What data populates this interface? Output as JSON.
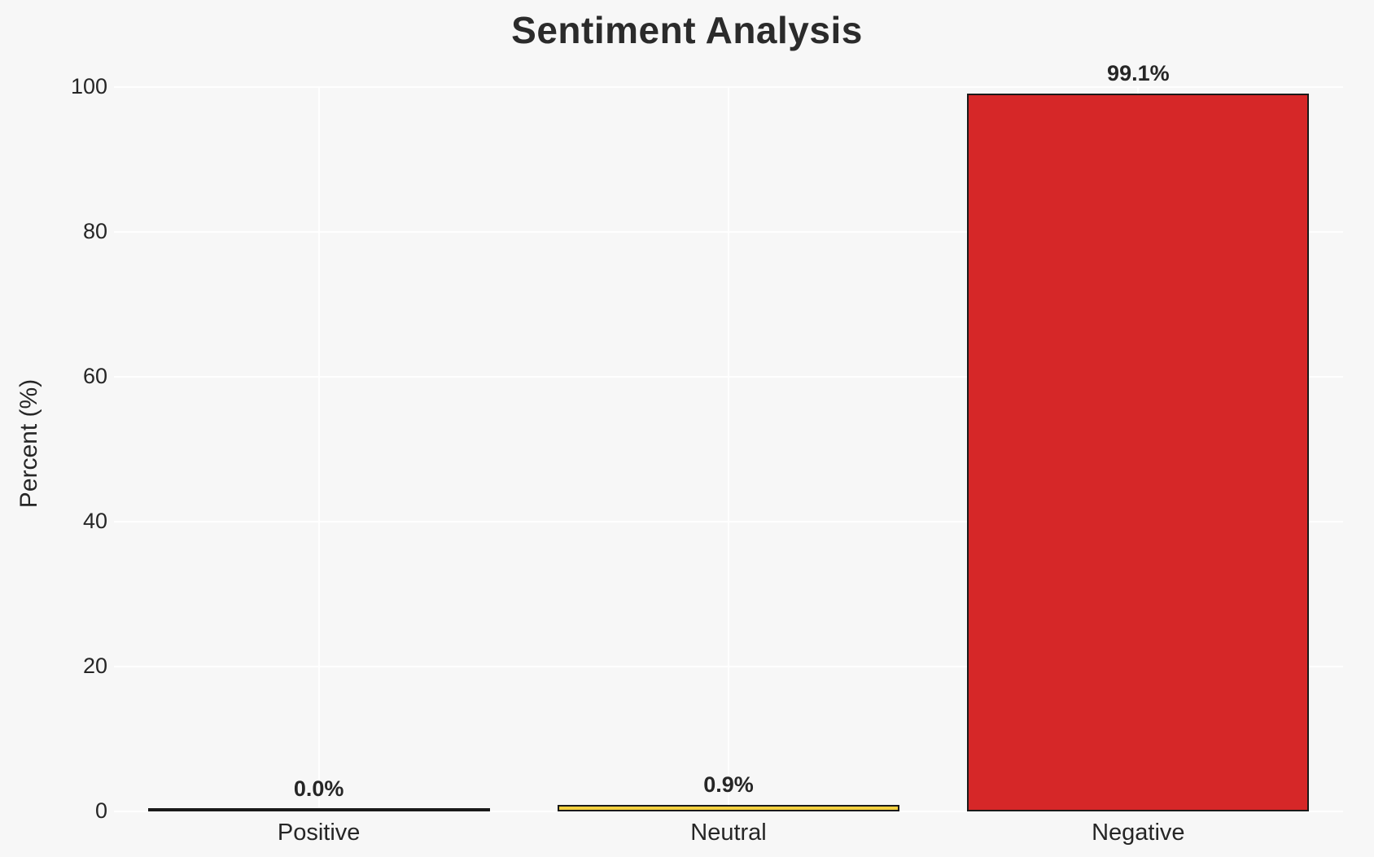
{
  "title": "Sentiment Analysis",
  "chart_data": {
    "type": "bar",
    "title": "Sentiment Analysis",
    "categories": [
      "Positive",
      "Neutral",
      "Negative"
    ],
    "values": [
      0.0,
      0.9,
      99.1
    ],
    "value_labels": [
      "0.0%",
      "0.9%",
      "99.1%"
    ],
    "bar_colors": [
      "#1A1A1A",
      "#F4D03F",
      "#D62728"
    ],
    "bar_edge_color": "#1A1A1A",
    "xlabel": "",
    "ylabel": "Percent (%)",
    "ylim": [
      0,
      105
    ],
    "yticks": [
      0,
      20,
      40,
      60,
      80,
      100
    ],
    "grid": true,
    "grid_color": "#FFFFFF",
    "background_color": "#F7F7F7",
    "text_color": "#262626",
    "legend": "none"
  }
}
